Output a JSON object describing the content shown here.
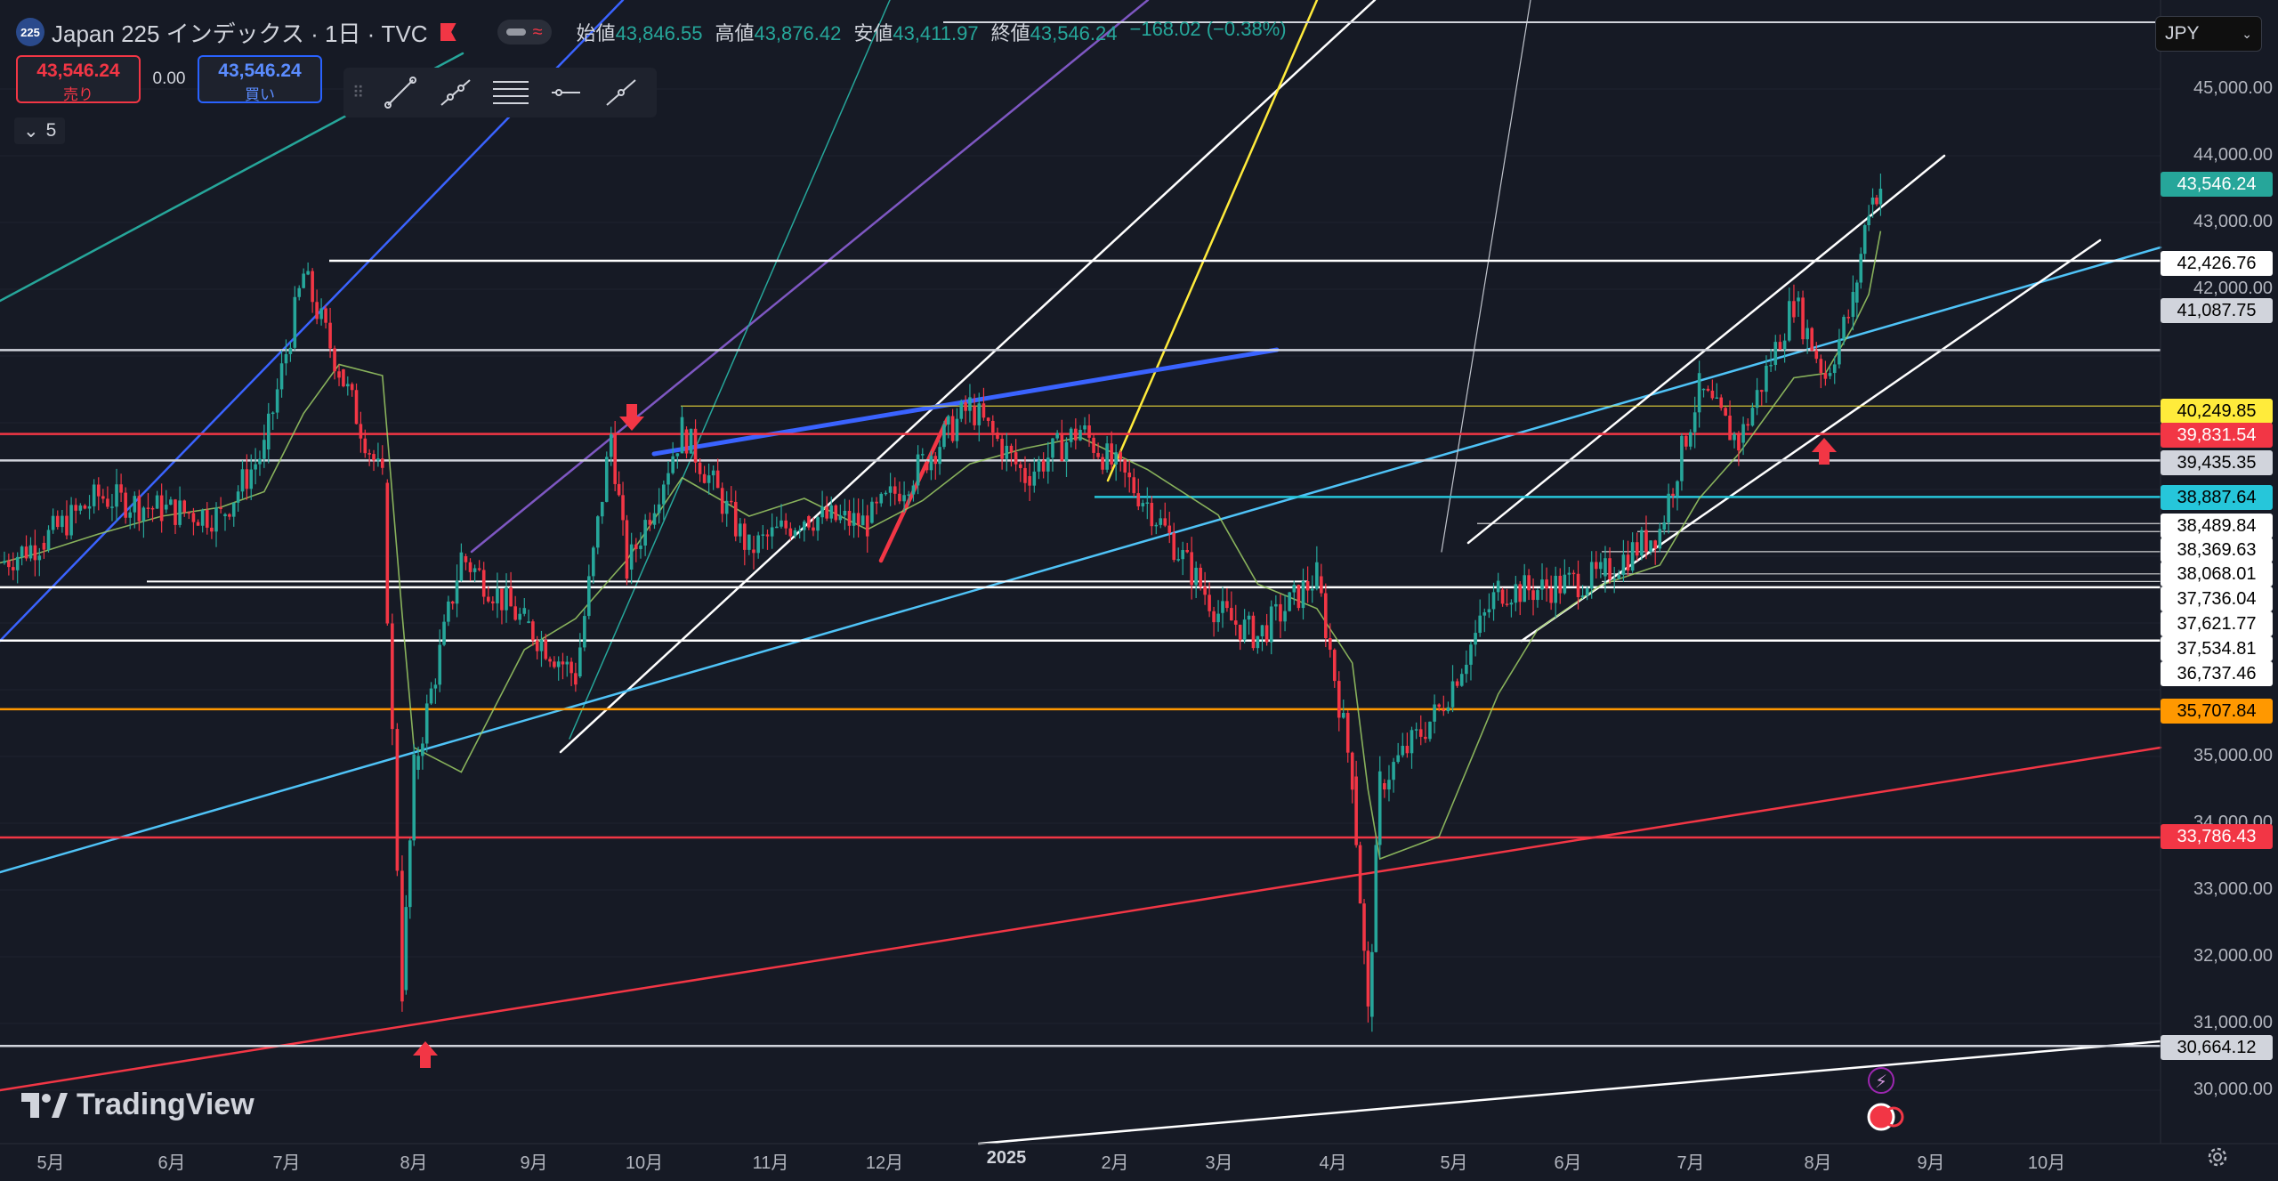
{
  "header": {
    "symbol_badge": "225",
    "title": "Japan 225 インデックス · 1日 · TVC",
    "ohlc": [
      {
        "label": "始値",
        "value": "43,846.55"
      },
      {
        "label": "高値",
        "value": "43,876.42"
      },
      {
        "label": "安値",
        "value": "43,411.97"
      },
      {
        "label": "終値",
        "value": "43,546.24"
      }
    ],
    "change": "−168.02 (−0.38%)"
  },
  "trade": {
    "sell_price": "43,546.24",
    "sell_label": "売り",
    "spread": "0.00",
    "buy_price": "43,546.24",
    "buy_label": "買い"
  },
  "interval_indicator": "5",
  "currency": "JPY",
  "drawing_tools": [
    "trend-line-icon",
    "ray-icon",
    "horizontal-lines-icon",
    "horizontal-line-icon",
    "extended-line-icon"
  ],
  "brand": "TradingView",
  "colors": {
    "up": "#26a69a",
    "down": "#f23645",
    "background": "#161a25"
  },
  "price_axis_labels": [
    "45,000.00",
    "44,000.00",
    "43,000.00",
    "42,000.00",
    "35,000.00",
    "34,000.00",
    "33,000.00",
    "32,000.00",
    "31,000.00",
    "30,000.00"
  ],
  "level_tags": [
    {
      "text": "43,546.24",
      "color": "#26a69a"
    },
    {
      "text": "42,426.76",
      "color": "#ffffff"
    },
    {
      "text": "41,087.75",
      "color": "#d1d4dc"
    },
    {
      "text": "40,249.85",
      "color": "#ffeb3b"
    },
    {
      "text": "39,831.54",
      "color": "#f23645"
    },
    {
      "text": "39,435.35",
      "color": "#d1d4dc"
    },
    {
      "text": "38,887.64",
      "color": "#26c6da"
    },
    {
      "text": "38,489.84",
      "color": "#ffffff"
    },
    {
      "text": "38,369.63",
      "color": "#ffffff"
    },
    {
      "text": "38,068.01",
      "color": "#ffffff"
    },
    {
      "text": "37,736.04",
      "color": "#ffffff"
    },
    {
      "text": "37,621.77",
      "color": "#ffffff"
    },
    {
      "text": "37,534.81",
      "color": "#ffffff"
    },
    {
      "text": "36,737.46",
      "color": "#ffffff"
    },
    {
      "text": "35,707.84",
      "color": "#ff9800"
    },
    {
      "text": "33,786.43",
      "color": "#f23645"
    },
    {
      "text": "30,664.12",
      "color": "#d1d4dc"
    }
  ],
  "time_axis_labels": [
    "5月",
    "6月",
    "7月",
    "8月",
    "9月",
    "10月",
    "11月",
    "12月",
    "2025",
    "2月",
    "3月",
    "4月",
    "5月",
    "6月",
    "7月",
    "8月",
    "9月",
    "10月"
  ],
  "chart_data": {
    "type": "candlestick",
    "symbol": "Japan 225",
    "interval": "1D",
    "ylim": [
      29500,
      45800
    ],
    "x_range": [
      "2024-04-25",
      "2025-10-25"
    ],
    "close_path": [
      [
        "2024-04-25",
        37900
      ],
      [
        "2024-05-05",
        38200
      ],
      [
        "2024-05-20",
        38900
      ],
      [
        "2024-06-05",
        38700
      ],
      [
        "2024-06-20",
        38600
      ],
      [
        "2024-07-01",
        39600
      ],
      [
        "2024-07-11",
        42220
      ],
      [
        "2024-07-20",
        40800
      ],
      [
        "2024-07-31",
        39100
      ],
      [
        "2024-08-05",
        31500
      ],
      [
        "2024-08-08",
        34800
      ],
      [
        "2024-08-20",
        38000
      ],
      [
        "2024-09-05",
        37000
      ],
      [
        "2024-09-18",
        36200
      ],
      [
        "2024-09-27",
        39830
      ],
      [
        "2024-10-01",
        37800
      ],
      [
        "2024-10-15",
        39900
      ],
      [
        "2024-11-01",
        38100
      ],
      [
        "2024-11-15",
        38600
      ],
      [
        "2024-12-01",
        38500
      ],
      [
        "2024-12-15",
        39400
      ],
      [
        "2024-12-27",
        40250
      ],
      [
        "2025-01-10",
        39200
      ],
      [
        "2025-01-24",
        39900
      ],
      [
        "2025-02-10",
        38800
      ],
      [
        "2025-02-28",
        37150
      ],
      [
        "2025-03-10",
        36800
      ],
      [
        "2025-03-25",
        37700
      ],
      [
        "2025-04-03",
        34700
      ],
      [
        "2025-04-07",
        31100
      ],
      [
        "2025-04-10",
        34600
      ],
      [
        "2025-04-25",
        35700
      ],
      [
        "2025-05-10",
        37500
      ],
      [
        "2025-05-20",
        37500
      ],
      [
        "2025-06-05",
        37700
      ],
      [
        "2025-06-20",
        38400
      ],
      [
        "2025-06-30",
        40500
      ],
      [
        "2025-07-10",
        39700
      ],
      [
        "2025-07-24",
        41820
      ],
      [
        "2025-08-01",
        40700
      ],
      [
        "2025-08-08",
        41800
      ],
      [
        "2025-08-12",
        43270
      ],
      [
        "2025-08-15",
        43546
      ]
    ]
  }
}
